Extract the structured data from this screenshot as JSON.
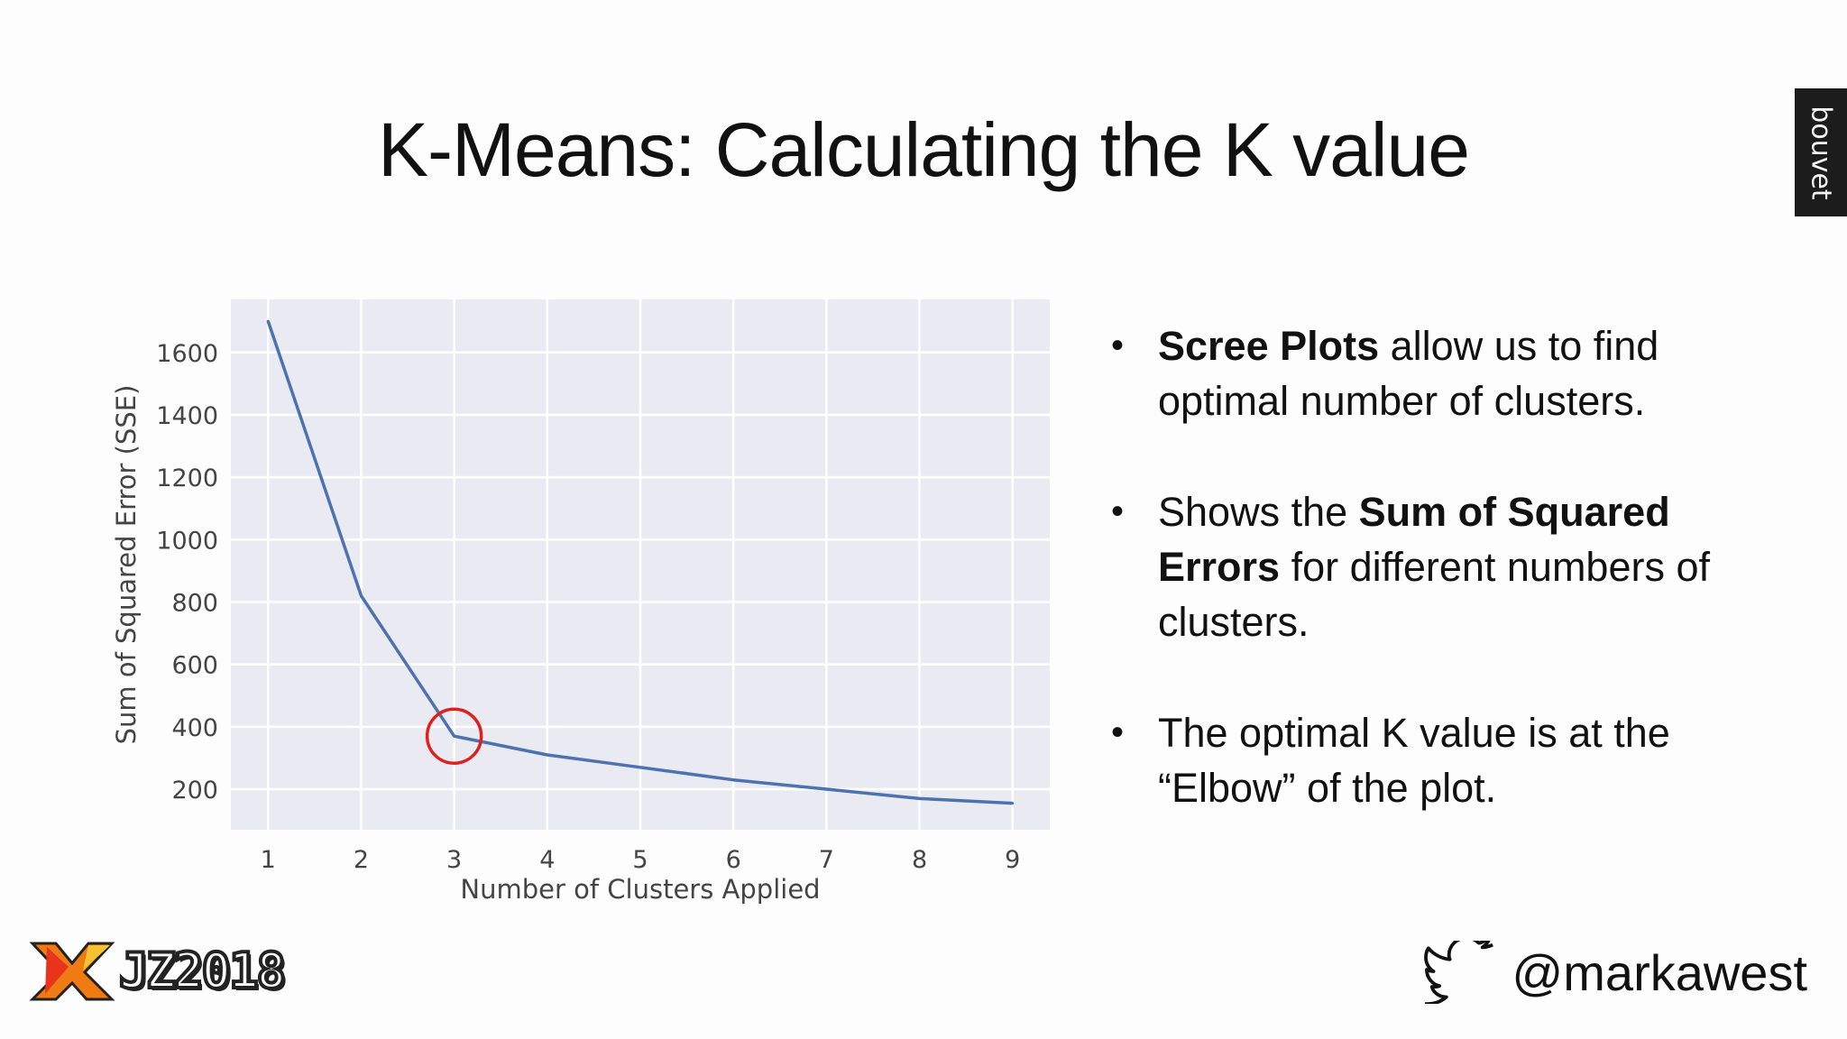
{
  "slide": {
    "title": "K-Means: Calculating the K value",
    "brand": "bouvet",
    "bullets": [
      {
        "parts": [
          {
            "text": "Scree Plots",
            "bold": true
          },
          {
            "text": " allow us to find optimal number of clusters.",
            "bold": false
          }
        ]
      },
      {
        "parts": [
          {
            "text": "Shows the ",
            "bold": false
          },
          {
            "text": "Sum of Squared Errors",
            "bold": true
          },
          {
            "text": " for different numbers of clusters.",
            "bold": false
          }
        ]
      },
      {
        "parts": [
          {
            "text": "The optimal K value is at the “Elbow” of the plot.",
            "bold": false
          }
        ]
      }
    ],
    "event_logo_text": "JZ2018",
    "twitter_handle": "@markawest"
  },
  "chart_data": {
    "type": "line",
    "x": [
      1,
      2,
      3,
      4,
      5,
      6,
      7,
      8,
      9
    ],
    "series": [
      {
        "values": [
          1700,
          820,
          370,
          310,
          270,
          230,
          200,
          170,
          155
        ]
      }
    ],
    "xlabel": "Number of Clusters Applied",
    "ylabel": "Sum of Squared Error (SSE)",
    "xticks": [
      1,
      2,
      3,
      4,
      5,
      6,
      7,
      8,
      9
    ],
    "yticks": [
      200,
      400,
      600,
      800,
      1000,
      1200,
      1400,
      1600
    ],
    "xlim": [
      0.6,
      9.4
    ],
    "ylim": [
      70,
      1770
    ],
    "grid": true,
    "highlight": {
      "x": 3,
      "y": 370,
      "color": "#e0201c"
    },
    "colors": {
      "line": "#4c72b0",
      "plot_bg": "#eaeaf2",
      "grid": "#ffffff"
    }
  }
}
